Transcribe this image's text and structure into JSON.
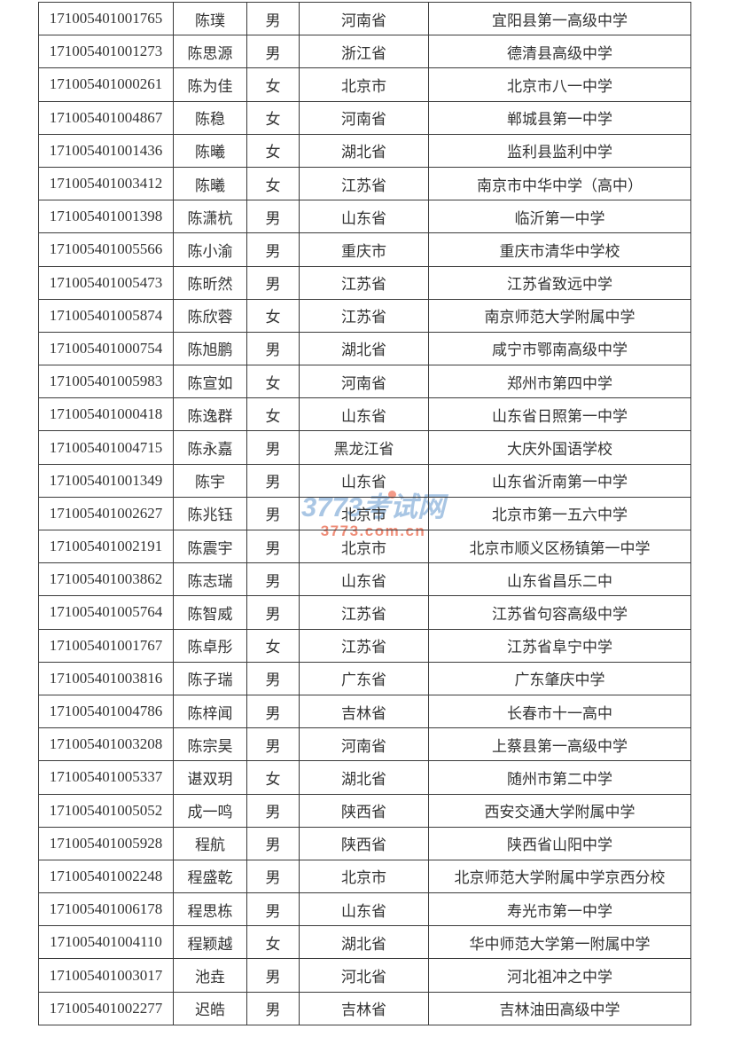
{
  "page": {
    "background_color": "#ffffff",
    "text_color": "#333333",
    "border_color": "#3b3b3b"
  },
  "watermark": {
    "line1": "3773考试网",
    "line2": "3773.com.cn",
    "line1_color": "#a9c6e4",
    "line2_color": "#ef8d78"
  },
  "table": {
    "column_keys": [
      "id",
      "name",
      "gender",
      "province",
      "school"
    ],
    "rows": [
      {
        "id": "171005401001765",
        "name": "陈璞",
        "gender": "男",
        "province": "河南省",
        "school": "宜阳县第一高级中学"
      },
      {
        "id": "171005401001273",
        "name": "陈思源",
        "gender": "男",
        "province": "浙江省",
        "school": "德清县高级中学"
      },
      {
        "id": "171005401000261",
        "name": "陈为佳",
        "gender": "女",
        "province": "北京市",
        "school": "北京市八一中学"
      },
      {
        "id": "171005401004867",
        "name": "陈稳",
        "gender": "女",
        "province": "河南省",
        "school": "郸城县第一中学"
      },
      {
        "id": "171005401001436",
        "name": "陈曦",
        "gender": "女",
        "province": "湖北省",
        "school": "监利县监利中学"
      },
      {
        "id": "171005401003412",
        "name": "陈曦",
        "gender": "女",
        "province": "江苏省",
        "school": "南京市中华中学（高中）"
      },
      {
        "id": "171005401001398",
        "name": "陈潇杭",
        "gender": "男",
        "province": "山东省",
        "school": "临沂第一中学"
      },
      {
        "id": "171005401005566",
        "name": "陈小渝",
        "gender": "男",
        "province": "重庆市",
        "school": "重庆市清华中学校"
      },
      {
        "id": "171005401005473",
        "name": "陈昕然",
        "gender": "男",
        "province": "江苏省",
        "school": "江苏省致远中学"
      },
      {
        "id": "171005401005874",
        "name": "陈欣蓉",
        "gender": "女",
        "province": "江苏省",
        "school": "南京师范大学附属中学"
      },
      {
        "id": "171005401000754",
        "name": "陈旭鹏",
        "gender": "男",
        "province": "湖北省",
        "school": "咸宁市鄂南高级中学"
      },
      {
        "id": "171005401005983",
        "name": "陈宣如",
        "gender": "女",
        "province": "河南省",
        "school": "郑州市第四中学"
      },
      {
        "id": "171005401000418",
        "name": "陈逸群",
        "gender": "女",
        "province": "山东省",
        "school": "山东省日照第一中学"
      },
      {
        "id": "171005401004715",
        "name": "陈永嘉",
        "gender": "男",
        "province": "黑龙江省",
        "school": "大庆外国语学校"
      },
      {
        "id": "171005401001349",
        "name": "陈宇",
        "gender": "男",
        "province": "山东省",
        "school": "山东省沂南第一中学"
      },
      {
        "id": "171005401002627",
        "name": "陈兆钰",
        "gender": "男",
        "province": "北京市",
        "school": "北京市第一五六中学"
      },
      {
        "id": "171005401002191",
        "name": "陈震宇",
        "gender": "男",
        "province": "北京市",
        "school": "北京市顺义区杨镇第一中学"
      },
      {
        "id": "171005401003862",
        "name": "陈志瑞",
        "gender": "男",
        "province": "山东省",
        "school": "山东省昌乐二中"
      },
      {
        "id": "171005401005764",
        "name": "陈智威",
        "gender": "男",
        "province": "江苏省",
        "school": "江苏省句容高级中学"
      },
      {
        "id": "171005401001767",
        "name": "陈卓彤",
        "gender": "女",
        "province": "江苏省",
        "school": "江苏省阜宁中学"
      },
      {
        "id": "171005401003816",
        "name": "陈子瑞",
        "gender": "男",
        "province": "广东省",
        "school": "广东肇庆中学"
      },
      {
        "id": "171005401004786",
        "name": "陈梓闻",
        "gender": "男",
        "province": "吉林省",
        "school": "长春市十一高中"
      },
      {
        "id": "171005401003208",
        "name": "陈宗昊",
        "gender": "男",
        "province": "河南省",
        "school": "上蔡县第一高级中学"
      },
      {
        "id": "171005401005337",
        "name": "谌双玥",
        "gender": "女",
        "province": "湖北省",
        "school": "随州市第二中学"
      },
      {
        "id": "171005401005052",
        "name": "成一鸣",
        "gender": "男",
        "province": "陕西省",
        "school": "西安交通大学附属中学"
      },
      {
        "id": "171005401005928",
        "name": "程航",
        "gender": "男",
        "province": "陕西省",
        "school": "陕西省山阳中学"
      },
      {
        "id": "171005401002248",
        "name": "程盛乾",
        "gender": "男",
        "province": "北京市",
        "school": "北京师范大学附属中学京西分校"
      },
      {
        "id": "171005401006178",
        "name": "程思栋",
        "gender": "男",
        "province": "山东省",
        "school": "寿光市第一中学"
      },
      {
        "id": "171005401004110",
        "name": "程颖越",
        "gender": "女",
        "province": "湖北省",
        "school": "华中师范大学第一附属中学"
      },
      {
        "id": "171005401003017",
        "name": "池垚",
        "gender": "男",
        "province": "河北省",
        "school": "河北祖冲之中学"
      },
      {
        "id": "171005401002277",
        "name": "迟皓",
        "gender": "男",
        "province": "吉林省",
        "school": "吉林油田高级中学"
      }
    ]
  }
}
